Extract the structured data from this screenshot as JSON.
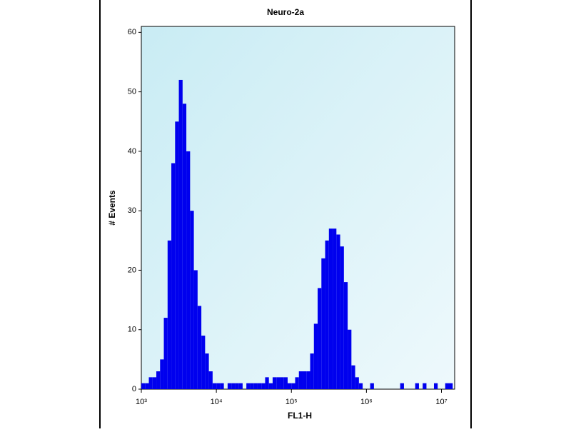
{
  "chart_data": {
    "type": "histogram",
    "title": "Neuro-2a",
    "x_label": "FL1-H",
    "y_label": "# Events",
    "x_scale": "log",
    "color": "#0000ee",
    "bins": [
      1000,
      1122,
      1259,
      1413,
      1585,
      1778,
      1995,
      2239,
      2512,
      2818,
      3162,
      3548,
      3981,
      4467,
      5012,
      5623,
      6310,
      7079,
      7943,
      8913,
      10000,
      11220,
      12589,
      14125,
      15849,
      17783,
      19953,
      22387,
      25119,
      28184,
      31623,
      35481,
      39811,
      44668,
      50119,
      56234,
      63096,
      70795,
      79433,
      89125,
      100000,
      112202,
      125893,
      141254,
      158489,
      177828,
      199526,
      223872,
      251189,
      281838,
      316228,
      354813,
      398107,
      446684,
      501187,
      562341,
      630957,
      707946,
      794328,
      891251,
      1000000,
      1122018,
      1258925,
      1412538,
      1584893,
      1778279,
      1995262,
      2238721,
      2511886,
      2818383,
      3162278,
      3548134,
      3981072,
      4466836,
      5011872,
      5623413,
      6309573,
      7079458,
      7943282,
      8912509,
      10000000,
      11220185,
      12589254,
      14125375
    ],
    "values": [
      1,
      1,
      2,
      2,
      3,
      5,
      12,
      25,
      38,
      45,
      52,
      48,
      40,
      30,
      20,
      14,
      9,
      6,
      3,
      1,
      1,
      1,
      0,
      1,
      1,
      1,
      1,
      0,
      1,
      1,
      1,
      1,
      1,
      2,
      1,
      2,
      2,
      2,
      2,
      1,
      1,
      2,
      3,
      3,
      3,
      6,
      11,
      17,
      22,
      25,
      27,
      27,
      26,
      24,
      18,
      10,
      4,
      2,
      1,
      0,
      0,
      1,
      0,
      0,
      0,
      0,
      0,
      0,
      0,
      1,
      0,
      0,
      0,
      1,
      0,
      1,
      0,
      0,
      1,
      0,
      0,
      1,
      1
    ],
    "xlim": [
      1000,
      15000000
    ],
    "xticks": [
      {
        "value": 1000,
        "label": "10³"
      },
      {
        "value": 10000,
        "label": "10⁴"
      },
      {
        "value": 100000,
        "label": "10⁵"
      },
      {
        "value": 1000000,
        "label": "10⁶"
      },
      {
        "value": 10000000,
        "label": "10⁷"
      }
    ],
    "ylim": [
      0,
      61
    ],
    "yticks": [
      0,
      10,
      20,
      30,
      40,
      50,
      60
    ]
  }
}
